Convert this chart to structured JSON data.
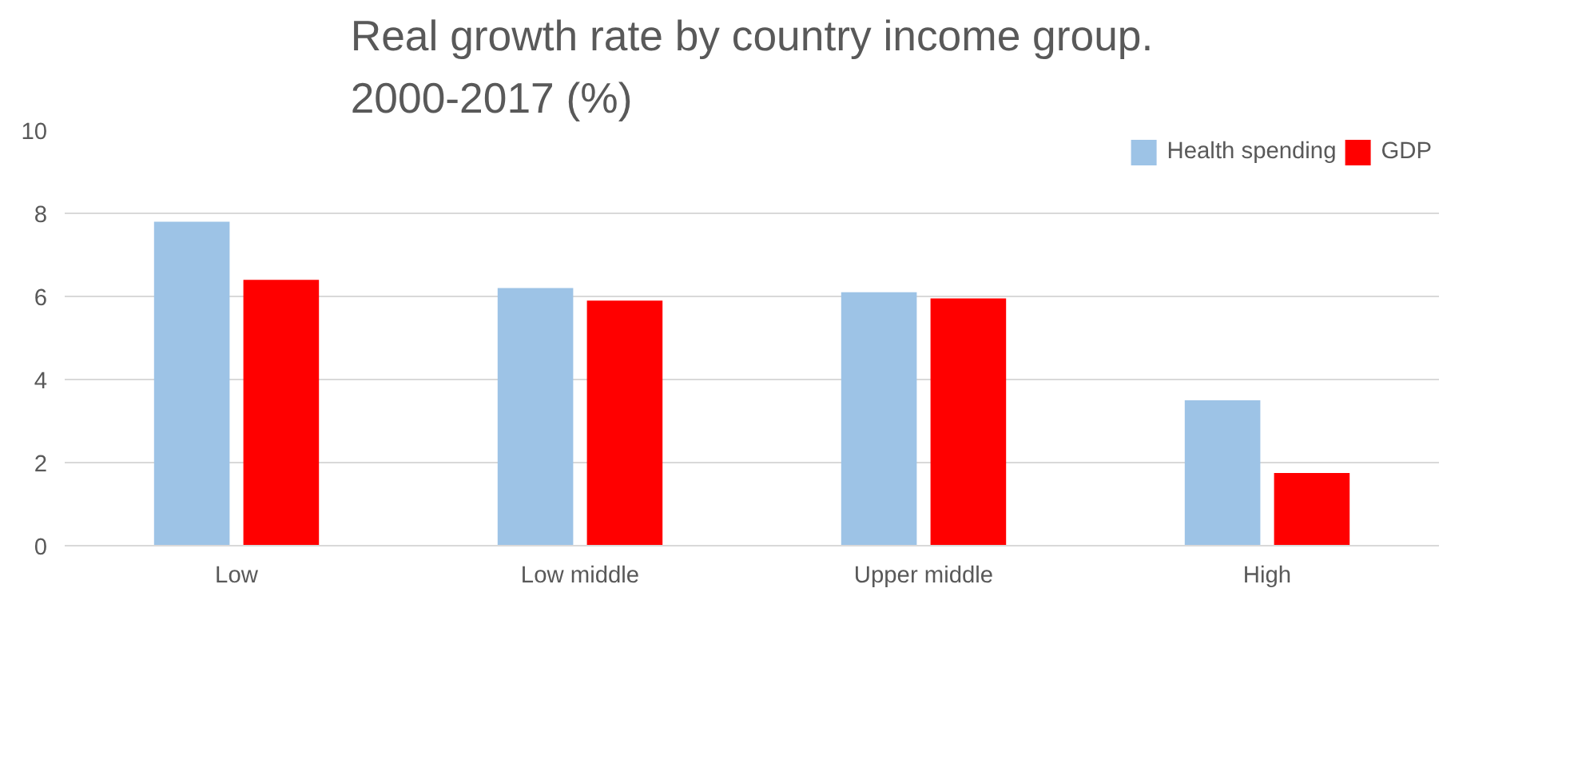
{
  "chart_data": {
    "type": "bar",
    "title": "Real growth rate by country income group. 2000-2017 (%)",
    "categories": [
      "Low",
      "Low middle",
      "Upper middle",
      "High"
    ],
    "series": [
      {
        "name": "Health spending",
        "color": "#9dc3e6",
        "values": [
          7.8,
          6.2,
          6.1,
          3.5
        ]
      },
      {
        "name": "GDP",
        "color": "#ff0000",
        "values": [
          6.4,
          5.9,
          5.95,
          1.75
        ]
      }
    ],
    "ylim": [
      0,
      10
    ],
    "yticks": [
      0,
      2,
      4,
      6,
      8,
      10
    ],
    "grid": "y",
    "legend": "top right"
  }
}
